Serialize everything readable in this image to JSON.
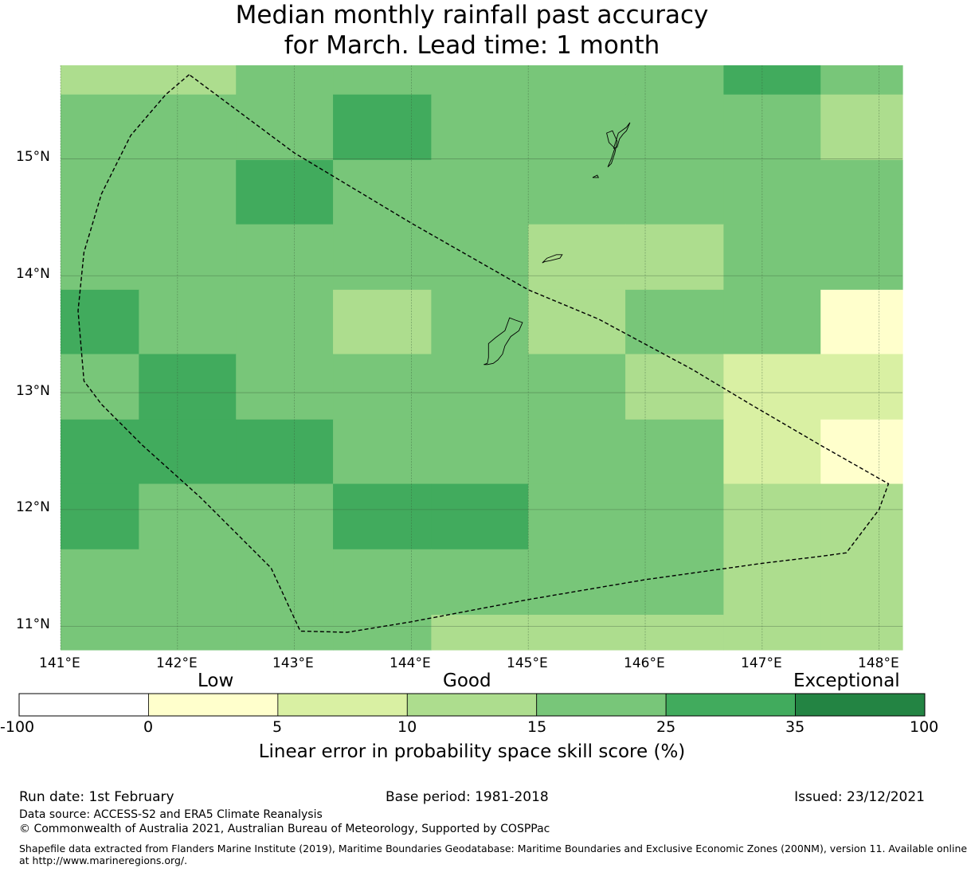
{
  "title": {
    "line1": "Median monthly rainfall past accuracy",
    "line2": "for March. Lead time: 1 month"
  },
  "map": {
    "lon_range": [
      141.0,
      148.2
    ],
    "lat_range": [
      10.8,
      15.8
    ],
    "lon_ticks": [
      141,
      142,
      143,
      144,
      145,
      146,
      147,
      148
    ],
    "lat_ticks": [
      11,
      12,
      13,
      14,
      15
    ],
    "lon_labels": [
      "141°E",
      "142°E",
      "143°E",
      "144°E",
      "145°E",
      "146°E",
      "147°E",
      "148°E"
    ],
    "lat_labels": [
      "11°N",
      "12°N",
      "13°N",
      "14°N",
      "15°N"
    ],
    "cell_lon_edges": [
      141.0,
      141.67,
      142.5,
      143.33,
      144.17,
      145.0,
      145.83,
      146.67,
      147.5,
      148.2
    ],
    "cell_lat_edges": [
      15.8,
      15.55,
      14.99,
      14.44,
      13.88,
      13.33,
      12.77,
      12.22,
      11.66,
      11.1,
      10.8
    ],
    "grid_classes": [
      [
        3,
        3,
        4,
        4,
        4,
        4,
        4,
        5,
        4
      ],
      [
        4,
        4,
        4,
        5,
        4,
        4,
        4,
        4,
        3
      ],
      [
        4,
        4,
        5,
        4,
        4,
        4,
        4,
        4,
        4
      ],
      [
        4,
        4,
        4,
        4,
        4,
        3,
        3,
        4,
        4
      ],
      [
        5,
        4,
        4,
        3,
        4,
        3,
        4,
        4,
        1
      ],
      [
        4,
        5,
        4,
        4,
        4,
        4,
        3,
        2,
        2
      ],
      [
        5,
        5,
        5,
        4,
        4,
        4,
        4,
        2,
        1
      ],
      [
        5,
        4,
        4,
        5,
        5,
        4,
        4,
        3,
        3
      ],
      [
        4,
        4,
        4,
        4,
        4,
        4,
        4,
        3,
        3
      ],
      [
        4,
        4,
        4,
        4,
        3,
        3,
        3,
        3,
        3
      ]
    ],
    "boundary": [
      [
        142.1,
        15.72
      ],
      [
        141.9,
        15.55
      ],
      [
        141.6,
        15.2
      ],
      [
        141.35,
        14.7
      ],
      [
        141.2,
        14.2
      ],
      [
        141.15,
        13.7
      ],
      [
        141.2,
        13.1
      ],
      [
        141.35,
        12.9
      ],
      [
        141.7,
        12.55
      ],
      [
        142.2,
        12.1
      ],
      [
        142.8,
        11.5
      ],
      [
        143.05,
        10.96
      ],
      [
        143.45,
        10.95
      ],
      [
        144.0,
        11.04
      ],
      [
        145.0,
        11.23
      ],
      [
        146.0,
        11.4
      ],
      [
        147.0,
        11.54
      ],
      [
        147.5,
        11.6
      ],
      [
        147.72,
        11.63
      ],
      [
        148.0,
        12.0
      ],
      [
        148.08,
        12.22
      ],
      [
        147.5,
        12.55
      ],
      [
        146.9,
        12.9
      ],
      [
        146.4,
        13.2
      ],
      [
        145.6,
        13.63
      ],
      [
        145.0,
        13.88
      ],
      [
        144.0,
        14.45
      ],
      [
        143.0,
        15.05
      ],
      [
        142.1,
        15.72
      ]
    ],
    "islands": [
      [
        [
          144.62,
          13.24
        ],
        [
          144.65,
          13.25
        ],
        [
          144.66,
          13.3
        ],
        [
          144.66,
          13.42
        ],
        [
          144.72,
          13.47
        ],
        [
          144.8,
          13.53
        ],
        [
          144.84,
          13.64
        ],
        [
          144.89,
          13.62
        ],
        [
          144.95,
          13.6
        ],
        [
          144.92,
          13.53
        ],
        [
          144.85,
          13.48
        ],
        [
          144.8,
          13.4
        ],
        [
          144.78,
          13.33
        ],
        [
          144.74,
          13.28
        ],
        [
          144.7,
          13.25
        ],
        [
          144.65,
          13.24
        ],
        [
          144.62,
          13.24
        ]
      ],
      [
        [
          145.12,
          14.11
        ],
        [
          145.16,
          14.15
        ],
        [
          145.24,
          14.18
        ],
        [
          145.29,
          14.18
        ],
        [
          145.27,
          14.15
        ],
        [
          145.19,
          14.13
        ],
        [
          145.14,
          14.12
        ],
        [
          145.12,
          14.11
        ]
      ],
      [
        [
          145.68,
          14.93
        ],
        [
          145.71,
          15.0
        ],
        [
          145.74,
          15.09
        ],
        [
          145.69,
          15.14
        ],
        [
          145.67,
          15.22
        ],
        [
          145.72,
          15.24
        ],
        [
          145.76,
          15.15
        ],
        [
          145.74,
          15.05
        ],
        [
          145.71,
          14.96
        ],
        [
          145.68,
          14.93
        ]
      ],
      [
        [
          145.73,
          15.09
        ],
        [
          145.77,
          15.22
        ],
        [
          145.84,
          15.27
        ],
        [
          145.87,
          15.31
        ],
        [
          145.84,
          15.24
        ],
        [
          145.81,
          15.21
        ],
        [
          145.78,
          15.17
        ],
        [
          145.76,
          15.1
        ],
        [
          145.73,
          15.09
        ]
      ],
      [
        [
          145.55,
          14.84
        ],
        [
          145.59,
          14.86
        ],
        [
          145.6,
          14.84
        ],
        [
          145.55,
          14.84
        ]
      ]
    ]
  },
  "colorbar": {
    "category_labels": {
      "low": "Low",
      "good": "Good",
      "exceptional": "Exceptional"
    },
    "boundaries": [
      "-100",
      "0",
      "5",
      "10",
      "15",
      "25",
      "35",
      "100"
    ],
    "colors": [
      "#ffffff",
      "#ffffcc",
      "#d9f0a3",
      "#addd8e",
      "#78c679",
      "#41ab5d",
      "#238443"
    ],
    "title": "Linear error in probability space skill score (%)"
  },
  "footer": {
    "run_date": "Run date: 1st February",
    "base_period": "Base period: 1981-2018",
    "issued": "Issued: 23/12/2021",
    "data_source": "Data source: ACCESS-S2 and ERA5 Climate Reanalysis",
    "copyright": "© Commonwealth of Australia 2021, Australian Bureau of Meteorology, Supported by COSPPac",
    "shapefile_line1": "Shapefile data extracted from Flanders Marine Institute (2019), Maritime Boundaries Geodatabase: Maritime Boundaries and Exclusive Economic Zones (200NM), version 11. Available online",
    "shapefile_line2": "at http://www.marineregions.org/."
  }
}
